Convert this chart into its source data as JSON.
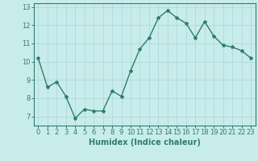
{
  "x": [
    0,
    1,
    2,
    3,
    4,
    5,
    6,
    7,
    8,
    9,
    10,
    11,
    12,
    13,
    14,
    15,
    16,
    17,
    18,
    19,
    20,
    21,
    22,
    23
  ],
  "y": [
    10.2,
    8.6,
    8.9,
    8.1,
    6.9,
    7.4,
    7.3,
    7.3,
    8.4,
    8.1,
    9.5,
    10.7,
    11.3,
    12.4,
    12.8,
    12.4,
    12.1,
    11.3,
    12.2,
    11.4,
    10.9,
    10.8,
    10.6,
    10.2
  ],
  "line_color": "#2e7d6e",
  "bg_color": "#c8ecec",
  "grid_color": "#b0d8d8",
  "xlabel": "Humidex (Indice chaleur)",
  "xlim": [
    -0.5,
    23.5
  ],
  "ylim": [
    6.5,
    13.2
  ],
  "yticks": [
    7,
    8,
    9,
    10,
    11,
    12,
    13
  ],
  "xticks": [
    0,
    1,
    2,
    3,
    4,
    5,
    6,
    7,
    8,
    9,
    10,
    11,
    12,
    13,
    14,
    15,
    16,
    17,
    18,
    19,
    20,
    21,
    22,
    23
  ],
  "marker": "*",
  "markersize": 3,
  "linewidth": 1.0,
  "xlabel_fontsize": 7,
  "tick_fontsize": 6
}
